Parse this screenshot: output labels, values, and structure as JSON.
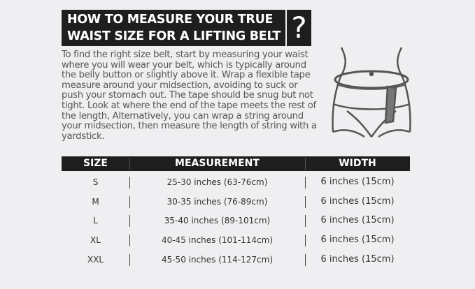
{
  "title": {
    "line1": "HOW TO MEASURE YOUR TRUE",
    "line2": "WAIST SIZE FOR A LIFTING BELT",
    "question_mark": "?"
  },
  "description": "To find the right size belt, start by measuring your waist where you will wear your belt, which is typically around the belly button or slightly above it. Wrap a flexible tape measure around your midsection, avoiding to suck or push your stomach out. The tape should be snug but not tight. Look at where the end of the tape meets the rest of the length, Alternatively, you can wrap a string around your midsection, then measure the length of string with a yardstick.",
  "illustration_icon": "waist-tape-measure-icon",
  "table": {
    "headers": [
      "SIZE",
      "MEASUREMENT",
      "WIDTH"
    ],
    "rows": [
      [
        "S",
        "25-30 inches (63-76cm)",
        "6 inches (15cm)"
      ],
      [
        "M",
        "30-35 inches (76-89cm)",
        "6 inches (15cm)"
      ],
      [
        "L",
        "35-40 inches (89-101cm)",
        "6 inches (15cm)"
      ],
      [
        "XL",
        "40-45 inches (101-114cm)",
        "6 inches (15cm)"
      ],
      [
        "XXL",
        "45-50 inches (114-127cm)",
        "6 inches (15cm)"
      ]
    ]
  }
}
